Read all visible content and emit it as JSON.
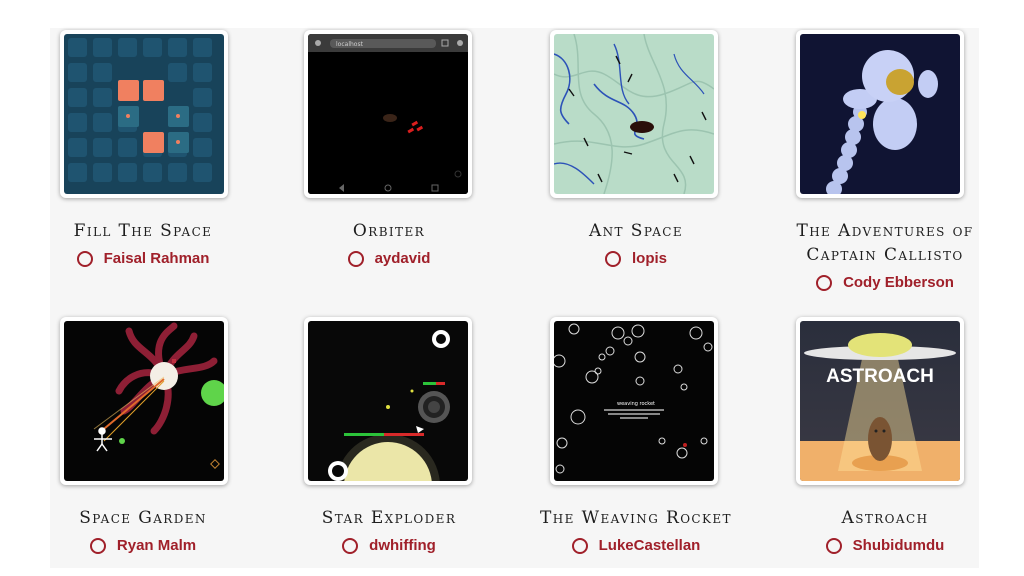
{
  "games": [
    {
      "title": "Fill The Space",
      "author": "Faisal Rahman"
    },
    {
      "title": "Orbiter",
      "author": "aydavid",
      "thumb_text": "localhost"
    },
    {
      "title": "Ant Space",
      "author": "lopis"
    },
    {
      "title_line1": "The Adventures of",
      "title_line2": "Captain Callisto",
      "author": "Cody Ebberson"
    },
    {
      "title": "Space Garden",
      "author": "Ryan Malm"
    },
    {
      "title": "Star Exploder",
      "author": "dwhiffing"
    },
    {
      "title": "The Weaving Rocket",
      "author": "LukeCastellan",
      "thumb_text": "weaving rocket"
    },
    {
      "title": "Astroach",
      "author": "Shubidumdu",
      "thumb_text": "ASTROACH"
    }
  ],
  "colors": {
    "author": "#a0202a",
    "title": "#1e1e1e",
    "panel": "#f6f6f6"
  },
  "icons": {
    "author_marker": "ring-icon"
  }
}
